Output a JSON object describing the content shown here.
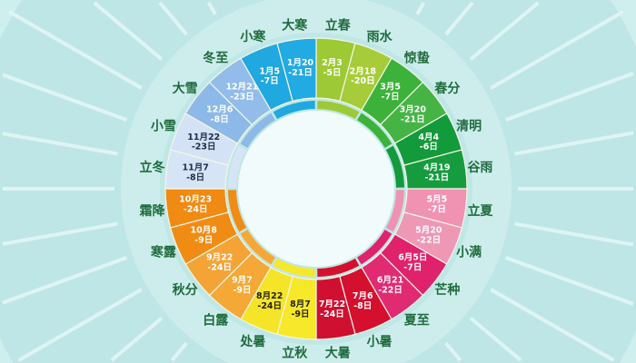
{
  "colors": {
    "background": "#cfeeee",
    "label": "#1f6b3c",
    "center": "#f2fbfb"
  },
  "terms": [
    {
      "name": "立春",
      "date": [
        "2月3",
        "-5日"
      ],
      "color": "#9dc935",
      "text": "#ffffff"
    },
    {
      "name": "雨水",
      "date": [
        "2月18",
        "-20日"
      ],
      "color": "#a6cc3a",
      "text": "#ffffff"
    },
    {
      "name": "惊蛰",
      "date": [
        "3月5",
        "-7日"
      ],
      "color": "#3db23b",
      "text": "#ffffff"
    },
    {
      "name": "春分",
      "date": [
        "3月20",
        "-21日"
      ],
      "color": "#45b445",
      "text": "#ffffff"
    },
    {
      "name": "清明",
      "date": [
        "4月4",
        "-6日"
      ],
      "color": "#139a3b",
      "text": "#ffffff"
    },
    {
      "name": "谷雨",
      "date": [
        "4月19",
        "-21日"
      ],
      "color": "#169c3e",
      "text": "#ffffff"
    },
    {
      "name": "立夏",
      "date": [
        "5月5",
        "-7日"
      ],
      "color": "#f093b3",
      "text": "#ffffff"
    },
    {
      "name": "小满",
      "date": [
        "5月20",
        "-22日"
      ],
      "color": "#ee98b6",
      "text": "#ffffff"
    },
    {
      "name": "芒种",
      "date": [
        "6月5日",
        "-7日"
      ],
      "color": "#e0226c",
      "text": "#ffffff"
    },
    {
      "name": "夏至",
      "date": [
        "6月21",
        "-22日"
      ],
      "color": "#e02a72",
      "text": "#ffffff"
    },
    {
      "name": "小暑",
      "date": [
        "7月6",
        "-8日"
      ],
      "color": "#d4102e",
      "text": "#ffffff"
    },
    {
      "name": "大暑",
      "date": [
        "7月22",
        "-24日"
      ],
      "color": "#cf1030",
      "text": "#ffffff"
    },
    {
      "name": "立秋",
      "date": [
        "8月7",
        "-9日"
      ],
      "color": "#f8e82a",
      "text": "#222222"
    },
    {
      "name": "处暑",
      "date": [
        "8月22",
        "-24日"
      ],
      "color": "#f6e428",
      "text": "#222222"
    },
    {
      "name": "白露",
      "date": [
        "9月7",
        "-9日"
      ],
      "color": "#f5a835",
      "text": "#ffffff"
    },
    {
      "name": "秋分",
      "date": [
        "9月22",
        "-24日"
      ],
      "color": "#f4a437",
      "text": "#ffffff"
    },
    {
      "name": "寒露",
      "date": [
        "10月8",
        "-9日"
      ],
      "color": "#f08c14",
      "text": "#ffffff"
    },
    {
      "name": "霜降",
      "date": [
        "10月23",
        "-24日"
      ],
      "color": "#f08a12",
      "text": "#ffffff"
    },
    {
      "name": "立冬",
      "date": [
        "11月7",
        "-8日"
      ],
      "color": "#d6e5f6",
      "text": "#1e2a4a"
    },
    {
      "name": "小雪",
      "date": [
        "11月22",
        "-23日"
      ],
      "color": "#d3e2f5",
      "text": "#1e2a4a"
    },
    {
      "name": "大雪",
      "date": [
        "12月6",
        "-8日"
      ],
      "color": "#8db9e8",
      "text": "#ffffff"
    },
    {
      "name": "冬至",
      "date": [
        "12月21",
        "-23日"
      ],
      "color": "#92bce9",
      "text": "#ffffff"
    },
    {
      "name": "小寒",
      "date": [
        "1月5",
        "-7日"
      ],
      "color": "#20a8e0",
      "text": "#ffffff"
    },
    {
      "name": "大寒",
      "date": [
        "1月20",
        "-21日"
      ],
      "color": "#22aae2",
      "text": "#ffffff"
    }
  ]
}
